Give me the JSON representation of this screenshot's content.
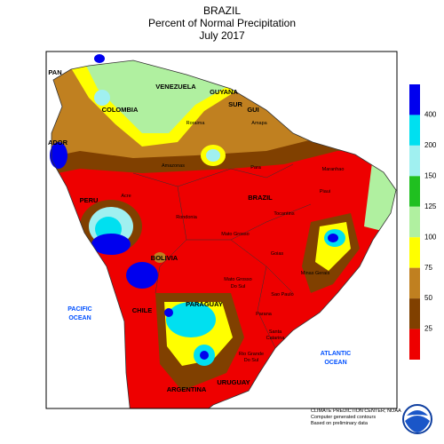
{
  "header": {
    "region": "BRAZIL",
    "title": "Percent of Normal Precipitation",
    "period": "July 2017"
  },
  "legend": {
    "labels": [
      400,
      200,
      150,
      125,
      100,
      75,
      50,
      25
    ],
    "colors": [
      "#0000ee",
      "#00e0f0",
      "#a0f0f0",
      "#20c020",
      "#b0f0a0",
      "#ffff00",
      "#c08020",
      "#804000",
      "#ee0000"
    ]
  },
  "countries": [
    "PAN",
    "VENEZUELA",
    "GUYANA",
    "SUR",
    "GUI",
    "COLOMBIA",
    "ADOR",
    "PERU",
    "BRAZIL",
    "BOLIVIA",
    "CHILE",
    "PARAGUAY",
    "ARGENTINA",
    "URUGUAY"
  ],
  "oceans": [
    [
      "PACIFIC",
      "OCEAN"
    ],
    [
      "ATLANTIC",
      "OCEAN"
    ]
  ],
  "states": [
    "Roraima",
    "Amapa",
    "Amazonas",
    "Para",
    "Maranhao",
    "Piaui",
    "Acre",
    "Rondonia",
    "Tocantins",
    "Mato Grosso",
    "Goias",
    "Mato Grosso",
    "Do Sul",
    "Minas Gerais",
    "Sao Paulo",
    "Parana",
    "Santa",
    "Catarina",
    "Rio Grande",
    "Do Sul"
  ],
  "footer": [
    "CLIMATE PREDICTION CENTER, NOAA",
    "Computer generated contours",
    "Based on preliminary data"
  ]
}
